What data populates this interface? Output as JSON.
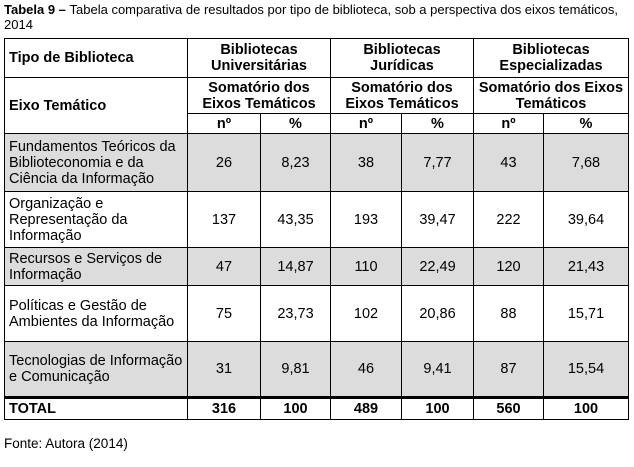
{
  "caption": {
    "label": "Tabela 9",
    "dash": " – ",
    "text": "Tabela comparativa de resultados por tipo de biblioteca, sob a perspectiva dos eixos temáticos, 2014"
  },
  "table": {
    "header_type": "Tipo de Biblioteca",
    "header_axis": "Eixo Temático",
    "groups": [
      {
        "title": "Bibliotecas Universitárias"
      },
      {
        "title": "Bibliotecas Jurídicas"
      },
      {
        "title": "Bibliotecas Especializadas"
      }
    ],
    "subheader": "Somatório dos Eixos Temáticos",
    "col_n": "nº",
    "col_pct": "%",
    "rows": [
      {
        "axis": "Fundamentos Teóricos da Biblioteconomia e da Ciência da Informação",
        "u_n": "26",
        "u_pct": "8,23",
        "j_n": "38",
        "j_pct": "7,77",
        "e_n": "43",
        "e_pct": "7,68"
      },
      {
        "axis": "Organização e Representação da Informação",
        "u_n": "137",
        "u_pct": "43,35",
        "j_n": "193",
        "j_pct": "39,47",
        "e_n": "222",
        "e_pct": "39,64"
      },
      {
        "axis": "Recursos e Serviços de Informação",
        "u_n": "47",
        "u_pct": "14,87",
        "j_n": "110",
        "j_pct": "22,49",
        "e_n": "120",
        "e_pct": "21,43"
      },
      {
        "axis": "Políticas e Gestão de Ambientes da Informação",
        "u_n": "75",
        "u_pct": "23,73",
        "j_n": "102",
        "j_pct": "20,86",
        "e_n": "88",
        "e_pct": "15,71"
      },
      {
        "axis": "Tecnologias de Informação e Comunicação",
        "u_n": "31",
        "u_pct": "9,81",
        "j_n": "46",
        "j_pct": "9,41",
        "e_n": "87",
        "e_pct": "15,54"
      }
    ],
    "total": {
      "label": "TOTAL",
      "u_n": "316",
      "u_pct": "100",
      "j_n": "489",
      "j_pct": "100",
      "e_n": "560",
      "e_pct": "100"
    }
  },
  "source": "Fonte: Autora (2014)"
}
